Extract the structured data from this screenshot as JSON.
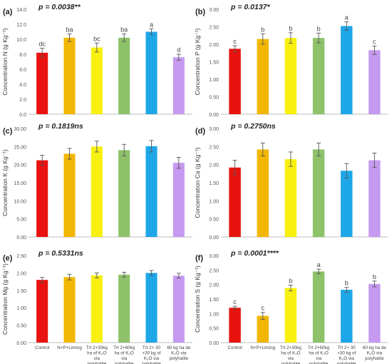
{
  "chart_data": [
    {
      "type": "bar",
      "panel_label": "(a)",
      "p_value": "p = 0.0038**",
      "ylabel": "Concentration N (g Kg⁻¹)",
      "ylim": [
        0,
        14
      ],
      "yticks": [
        "0.0",
        "2.0",
        "4.0",
        "6.0",
        "8.0",
        "10.0",
        "12.0",
        "14.0"
      ],
      "categories": [
        "Control",
        "N+P+Liming",
        "Trt 2+30kg ha of K₂O via polyhalite",
        "Trt 2+60kg ha of K₂O via polyhalite",
        "Trt 2+ 30 +30 kg of K₂O via polyhalite",
        "60 kg ha de K₂O via polyhalite"
      ],
      "show_category_labels": false,
      "values": [
        8.2,
        10.2,
        8.9,
        10.2,
        11.0,
        7.6
      ],
      "errors": [
        0.6,
        0.5,
        0.6,
        0.5,
        0.4,
        0.4
      ],
      "letters": [
        "dc",
        "ba",
        "bc",
        "ba",
        "a",
        "d"
      ]
    },
    {
      "type": "bar",
      "panel_label": "(b)",
      "p_value": "p = 0.0137*",
      "ylabel": "Concentration P (g Kg⁻¹)",
      "ylim": [
        0,
        3
      ],
      "yticks": [
        "0.00",
        "0.50",
        "1.00",
        "1.50",
        "2.00",
        "2.50",
        "3.00"
      ],
      "categories": [
        "Control",
        "N+P+Liming",
        "Trt 2+30kg ha of K₂O via polyhalite",
        "Trt 2+60kg ha of K₂O via polyhalite",
        "Trt 2+ 30 +30 kg of K₂O via polyhalite",
        "60 kg ha de K₂O via polyhalite"
      ],
      "show_category_labels": false,
      "values": [
        1.87,
        2.15,
        2.18,
        2.18,
        2.52,
        1.83
      ],
      "errors": [
        0.09,
        0.15,
        0.15,
        0.14,
        0.12,
        0.12
      ],
      "letters": [
        "c",
        "b",
        "b",
        "b",
        "a",
        "c"
      ]
    },
    {
      "type": "bar",
      "panel_label": "(c)",
      "p_value": "p = 0.1819ns",
      "ylabel": "Concentration K (g Kg⁻¹)",
      "ylim": [
        0,
        30
      ],
      "yticks": [
        "0.00",
        "5.00",
        "10.00",
        "15.00",
        "20.00",
        "25.00",
        "30.00"
      ],
      "categories": [
        "Control",
        "N+P+Liming",
        "Trt 2+30kg ha of K₂O via polyhalite",
        "Trt 2+60kg ha of K₂O via polyhalite",
        "Trt 2+ 30 +30 kg of K₂O via polyhalite",
        "60 kg ha de K₂O via polyhalite"
      ],
      "show_category_labels": false,
      "values": [
        21.2,
        23.0,
        25.0,
        24.0,
        25.1,
        20.5
      ],
      "errors": [
        1.4,
        1.5,
        1.5,
        1.6,
        1.6,
        1.5
      ],
      "letters": [
        "",
        "",
        "",
        "",
        "",
        ""
      ]
    },
    {
      "type": "bar",
      "panel_label": "(d)",
      "p_value": "p = 0.2750ns",
      "ylabel": "Concentration Ca (g Kg⁻¹)",
      "ylim": [
        0,
        3
      ],
      "yticks": [
        "0.00",
        "0.50",
        "1.00",
        "1.50",
        "2.00",
        "2.50",
        "3.00"
      ],
      "categories": [
        "Control",
        "N+P+Liming",
        "Trt 2+30kg ha of K₂O via polyhalite",
        "Trt 2+60kg ha of K₂O via polyhalite",
        "Trt 2+ 30 +30 kg of K₂O via polyhalite",
        "60 kg ha de K₂O via polyhalite"
      ],
      "show_category_labels": false,
      "values": [
        1.92,
        2.42,
        2.15,
        2.42,
        1.83,
        2.12
      ],
      "errors": [
        0.2,
        0.18,
        0.2,
        0.18,
        0.2,
        0.2
      ],
      "letters": [
        "",
        "",
        "",
        "",
        "",
        ""
      ]
    },
    {
      "type": "bar",
      "panel_label": "(e)",
      "p_value": "p = 0.5331ns",
      "ylabel": "Concentration Mg (g Kg⁻¹)",
      "ylim": [
        0,
        2.5
      ],
      "yticks": [
        "0.00",
        "0.50",
        "1.00",
        "1.50",
        "2.00",
        "2.50"
      ],
      "categories": [
        "Control",
        "N+P+Liming",
        "Trt 2+30kg ha of K₂O via polyhalite",
        "Trt 2+60kg ha of K₂O via polyhalite",
        "Trt 2+ 30 +30 kg of K₂O via polyhalite",
        "60 kg ha de K₂O via polyhalite"
      ],
      "show_category_labels": true,
      "values": [
        1.8,
        1.88,
        1.93,
        1.95,
        2.0,
        1.92
      ],
      "errors": [
        0.07,
        0.08,
        0.07,
        0.07,
        0.07,
        0.07
      ],
      "letters": [
        "",
        "",
        "",
        "",
        "",
        ""
      ]
    },
    {
      "type": "bar",
      "panel_label": "(f)",
      "p_value": "p = 0.0001****",
      "ylabel": "Concentration S (g Kg⁻¹)",
      "ylim": [
        0,
        3
      ],
      "yticks": [
        "0.00",
        "0.50",
        "1.00",
        "1.50",
        "2.00",
        "2.50",
        "3.00"
      ],
      "categories": [
        "Control",
        "N+P+Liming",
        "Trt 2+30kg ha of K₂O via polyhalite",
        "Trt 2+60kg ha of K₂O via polyhalite",
        "Trt 2+ 30 +30 kg of K₂O via polyhalite",
        "60 kg ha de K₂O via polyhalite"
      ],
      "show_category_labels": true,
      "values": [
        1.2,
        0.92,
        1.88,
        2.45,
        1.82,
        2.02
      ],
      "errors": [
        0.05,
        0.12,
        0.1,
        0.08,
        0.08,
        0.1
      ],
      "letters": [
        "c",
        "c",
        "b",
        "a",
        "b",
        "b"
      ]
    }
  ],
  "colors": [
    "#e8130f",
    "#f2b705",
    "#f7f010",
    "#8ec26a",
    "#1ea7e8",
    "#c59af0"
  ],
  "grid": false
}
